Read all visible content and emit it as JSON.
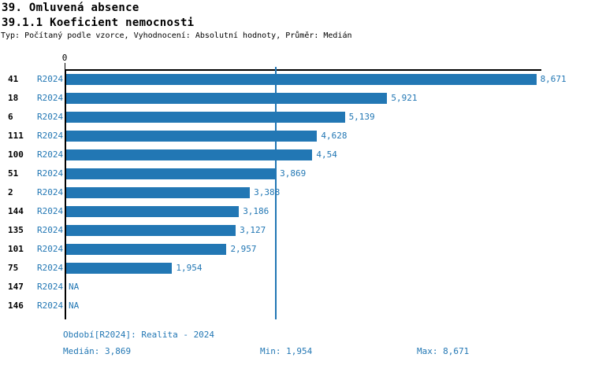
{
  "header": {
    "title": "39. Omluvená absence",
    "subtitle": "39.1.1 Koeficient nemocnosti",
    "meta": "Typ: Počítaný podle vzorce, Vyhodnocení: Absolutní hodnoty, Průměr: Medián"
  },
  "chart_data": {
    "type": "bar",
    "orientation": "horizontal",
    "title": "39.1.1 Koeficient nemocnosti",
    "categories": [
      "41",
      "18",
      "6",
      "111",
      "100",
      "51",
      "2",
      "144",
      "135",
      "101",
      "75",
      "147",
      "146"
    ],
    "series": [
      {
        "name": "R2024",
        "values": [
          8.671,
          5.921,
          5.139,
          4.628,
          4.54,
          3.869,
          3.388,
          3.186,
          3.127,
          2.957,
          1.954,
          null,
          null
        ],
        "value_labels": [
          "8,671",
          "5,921",
          "5,139",
          "4,628",
          "4,54",
          "3,869",
          "3,388",
          "3,186",
          "3,127",
          "2,957",
          "1,954",
          "NA",
          "NA"
        ]
      }
    ],
    "x_axis": {
      "tick_labels": [
        "0"
      ],
      "range": [
        0,
        8.75
      ]
    },
    "median_line_value": 3.869,
    "bar_color": "#2277b4",
    "grid": false,
    "legend": false
  },
  "footer": {
    "period_label": "Období[R2024]: Realita - 2024",
    "median_label": "Medián: 3,869",
    "min_label": "Min: 1,954",
    "max_label": "Max: 8,671"
  }
}
